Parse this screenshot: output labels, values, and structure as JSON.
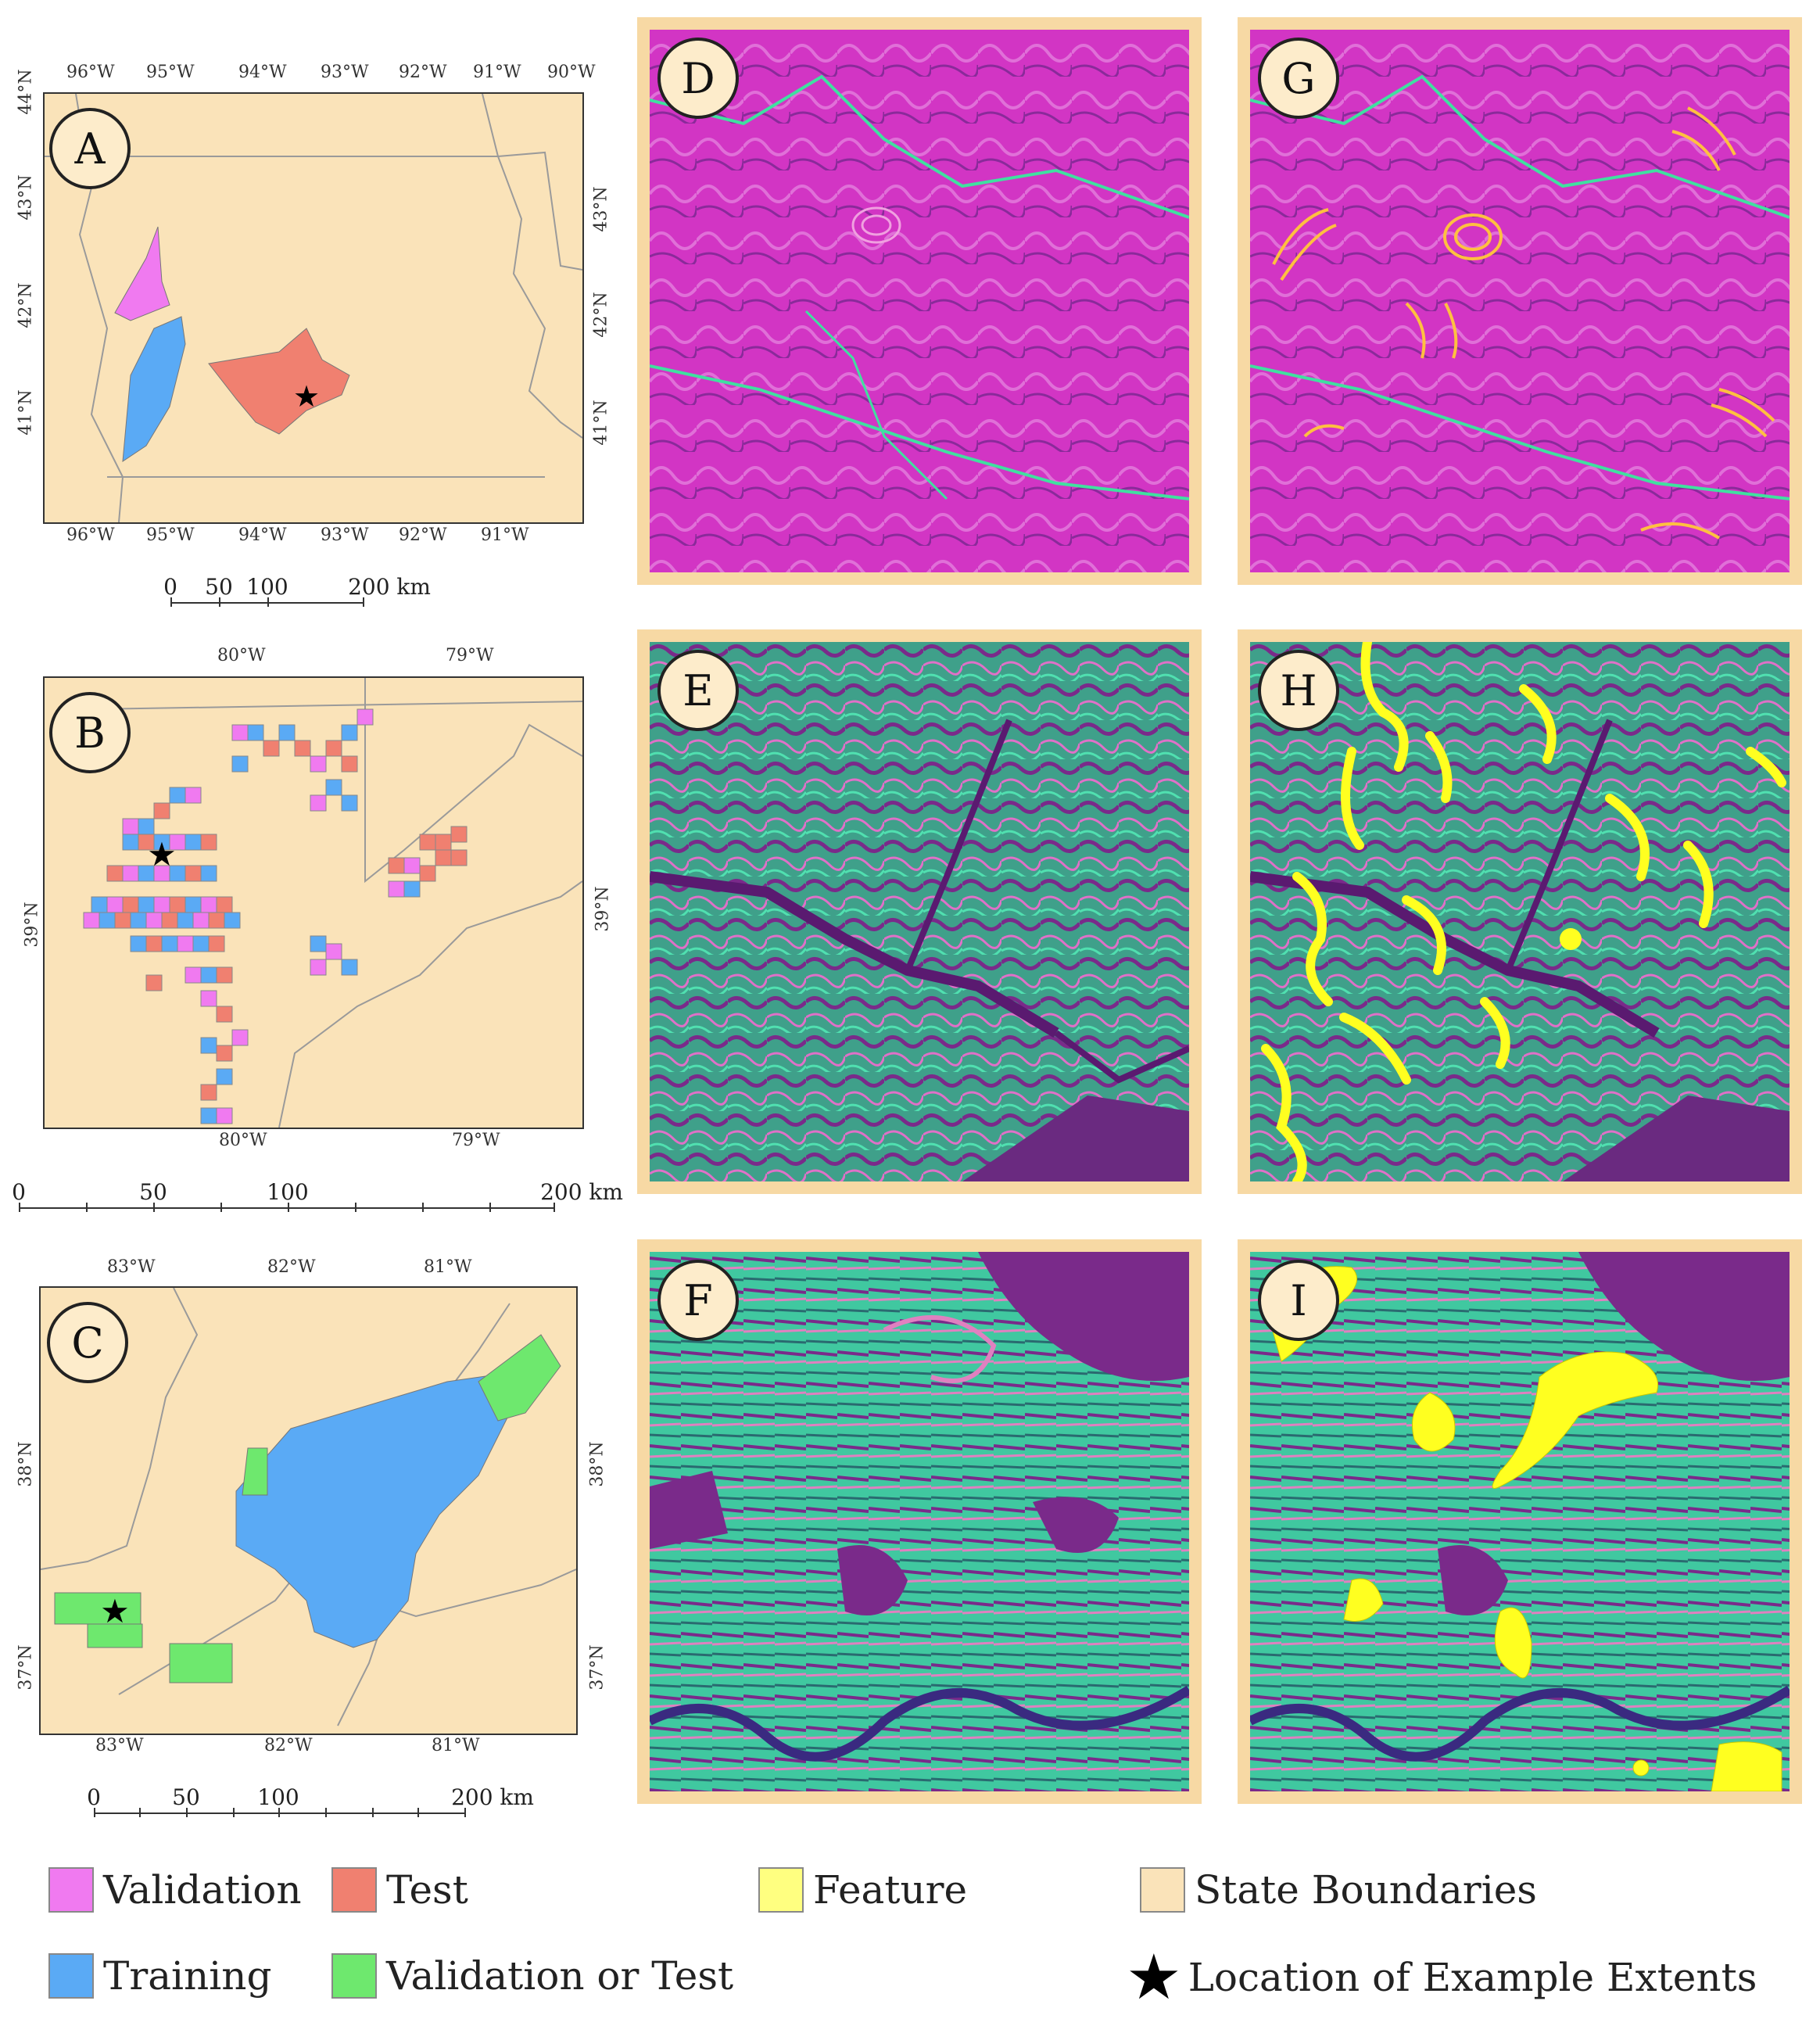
{
  "maps": {
    "a": {
      "label": "A",
      "lon_top": [
        "96°W",
        "95°W",
        "94°W",
        "93°W",
        "92°W",
        "91°W",
        "90°W"
      ],
      "lon_bottom": [
        "96°W",
        "95°W",
        "94°W",
        "93°W",
        "92°W",
        "91°W"
      ],
      "lat_left": [
        "44°N",
        "43°N",
        "42°N",
        "41°N"
      ],
      "lat_right": [
        "43°N",
        "42°N",
        "41°N"
      ],
      "scale": [
        "0",
        "50",
        "100",
        "200 km"
      ]
    },
    "b": {
      "label": "B",
      "lon_top": [
        "80°W",
        "79°W"
      ],
      "lon_bottom": [
        "80°W",
        "79°W"
      ],
      "lat_left": [
        "39°N"
      ],
      "lat_right": [
        "39°N"
      ],
      "scale": [
        "0",
        "50",
        "100",
        "200 km"
      ]
    },
    "c": {
      "label": "C",
      "lon_top": [
        "83°W",
        "82°W",
        "81°W"
      ],
      "lon_bottom": [
        "83°W",
        "82°W",
        "81°W"
      ],
      "lat_left": [
        "38°N",
        "37°N"
      ],
      "lat_right": [
        "38°N",
        "37°N"
      ],
      "scale": [
        "0",
        "50",
        "100",
        "200 km"
      ]
    }
  },
  "panels": {
    "d": "D",
    "e": "E",
    "f": "F",
    "g": "G",
    "h": "H",
    "i": "I"
  },
  "legend": {
    "validation": "Validation",
    "test": "Test",
    "feature": "Feature",
    "state_boundaries": "State Boundaries",
    "training": "Training",
    "validation_or_test": "Validation or Test",
    "location": "Location of Example Extents"
  },
  "colors": {
    "validation": "#f07af0",
    "test": "#f08070",
    "training": "#5aaaf5",
    "validation_or_test": "#6ee86e",
    "feature": "#ffff80",
    "state": "#fae3b9",
    "terrain_magenta": "#d030c0",
    "terrain_green": "#40d0a0",
    "terrain_purple": "#7a2a8a"
  }
}
